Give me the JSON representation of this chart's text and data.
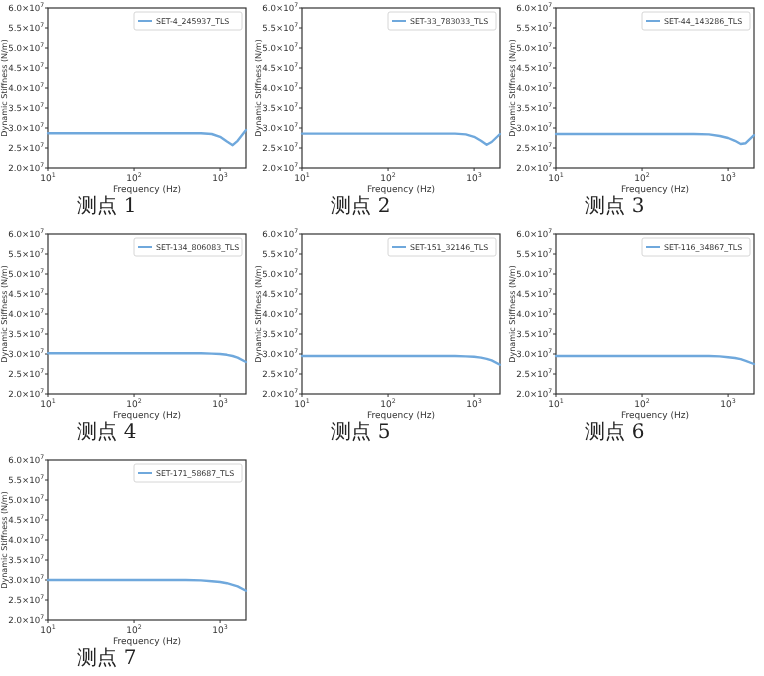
{
  "chart_data": [
    {
      "type": "line",
      "title": "测点 1",
      "xlabel": "Frequency (Hz)",
      "ylabel": "Dynamic Stiffness (N/m)",
      "log": "x",
      "legend": "top right",
      "xlim": [
        10,
        2000
      ],
      "ylim": [
        20000000,
        60000000
      ],
      "xticks": [
        {
          "value": 10,
          "label": "10$^{1}$"
        },
        {
          "value": 100,
          "label": "10$^{2}$"
        },
        {
          "value": 1000,
          "label": "10$^{3}$"
        }
      ],
      "yticks": [
        {
          "value": 20000000,
          "label": "2.0×10$^{7}$"
        },
        {
          "value": 25000000,
          "label": "2.5×10$^{7}$"
        },
        {
          "value": 30000000,
          "label": "3.0×10$^{7}$"
        },
        {
          "value": 35000000,
          "label": "3.5×10$^{7}$"
        },
        {
          "value": 40000000,
          "label": "4.0×10$^{7}$"
        },
        {
          "value": 45000000,
          "label": "4.5×10$^{7}$"
        },
        {
          "value": 50000000,
          "label": "5.0×10$^{7}$"
        },
        {
          "value": 55000000,
          "label": "5.5×10$^{7}$"
        },
        {
          "value": 60000000,
          "label": "6.0×10$^{7}$"
        }
      ],
      "x": [
        10,
        20,
        50,
        100,
        200,
        400,
        600,
        800,
        1000,
        1200,
        1400,
        1600,
        2000
      ],
      "series": [
        {
          "name": "SET-4_245937_TLS",
          "color": "#6fa8dc",
          "values": [
            28700000,
            28700000,
            28700000,
            28700000,
            28700000,
            28700000,
            28700000,
            28500000,
            27800000,
            26600000,
            25700000,
            26800000,
            29500000
          ]
        }
      ]
    },
    {
      "type": "line",
      "title": "测点 2",
      "xlabel": "Frequency (Hz)",
      "ylabel": "Dynamic Stiffness (N/m)",
      "log": "x",
      "legend": "top right",
      "xlim": [
        10,
        2000
      ],
      "ylim": [
        20000000,
        60000000
      ],
      "xticks": [
        {
          "value": 10,
          "label": "10$^{1}$"
        },
        {
          "value": 100,
          "label": "10$^{2}$"
        },
        {
          "value": 1000,
          "label": "10$^{3}$"
        }
      ],
      "yticks": [
        {
          "value": 20000000,
          "label": "2.0×10$^{7}$"
        },
        {
          "value": 25000000,
          "label": "2.5×10$^{7}$"
        },
        {
          "value": 30000000,
          "label": "3.0×10$^{7}$"
        },
        {
          "value": 35000000,
          "label": "3.5×10$^{7}$"
        },
        {
          "value": 40000000,
          "label": "4.0×10$^{7}$"
        },
        {
          "value": 45000000,
          "label": "4.5×10$^{7}$"
        },
        {
          "value": 50000000,
          "label": "5.0×10$^{7}$"
        },
        {
          "value": 55000000,
          "label": "5.5×10$^{7}$"
        },
        {
          "value": 60000000,
          "label": "6.0×10$^{7}$"
        }
      ],
      "x": [
        10,
        20,
        50,
        100,
        200,
        400,
        600,
        800,
        1000,
        1200,
        1400,
        1600,
        2000
      ],
      "series": [
        {
          "name": "SET-33_783033_TLS",
          "color": "#6fa8dc",
          "values": [
            28600000,
            28600000,
            28600000,
            28600000,
            28600000,
            28600000,
            28600000,
            28400000,
            27800000,
            26800000,
            25800000,
            26500000,
            28500000
          ]
        }
      ]
    },
    {
      "type": "line",
      "title": "测点 3",
      "xlabel": "Frequency (Hz)",
      "ylabel": "Dynamic Stiffness (N/m)",
      "log": "x",
      "legend": "top right",
      "xlim": [
        10,
        2000
      ],
      "ylim": [
        20000000,
        60000000
      ],
      "xticks": [
        {
          "value": 10,
          "label": "10$^{1}$"
        },
        {
          "value": 100,
          "label": "10$^{2}$"
        },
        {
          "value": 1000,
          "label": "10$^{3}$"
        }
      ],
      "yticks": [
        {
          "value": 20000000,
          "label": "2.0×10$^{7}$"
        },
        {
          "value": 25000000,
          "label": "2.5×10$^{7}$"
        },
        {
          "value": 30000000,
          "label": "3.0×10$^{7}$"
        },
        {
          "value": 35000000,
          "label": "3.5×10$^{7}$"
        },
        {
          "value": 40000000,
          "label": "4.0×10$^{7}$"
        },
        {
          "value": 45000000,
          "label": "4.5×10$^{7}$"
        },
        {
          "value": 50000000,
          "label": "5.0×10$^{7}$"
        },
        {
          "value": 55000000,
          "label": "5.5×10$^{7}$"
        },
        {
          "value": 60000000,
          "label": "6.0×10$^{7}$"
        }
      ],
      "x": [
        10,
        20,
        50,
        100,
        200,
        400,
        600,
        800,
        1000,
        1200,
        1400,
        1600,
        2000
      ],
      "series": [
        {
          "name": "SET-44_143286_TLS",
          "color": "#6fa8dc",
          "values": [
            28500000,
            28500000,
            28500000,
            28500000,
            28500000,
            28500000,
            28400000,
            28000000,
            27500000,
            26800000,
            26000000,
            26200000,
            28200000
          ]
        }
      ]
    },
    {
      "type": "line",
      "title": "测点 4",
      "xlabel": "Frequency (Hz)",
      "ylabel": "Dynamic Stiffness (N/m)",
      "log": "x",
      "legend": "top right",
      "xlim": [
        10,
        2000
      ],
      "ylim": [
        20000000,
        60000000
      ],
      "xticks": [
        {
          "value": 10,
          "label": "10$^{1}$"
        },
        {
          "value": 100,
          "label": "10$^{2}$"
        },
        {
          "value": 1000,
          "label": "10$^{3}$"
        }
      ],
      "yticks": [
        {
          "value": 20000000,
          "label": "2.0×10$^{7}$"
        },
        {
          "value": 25000000,
          "label": "2.5×10$^{7}$"
        },
        {
          "value": 30000000,
          "label": "3.0×10$^{7}$"
        },
        {
          "value": 35000000,
          "label": "3.5×10$^{7}$"
        },
        {
          "value": 40000000,
          "label": "4.0×10$^{7}$"
        },
        {
          "value": 45000000,
          "label": "4.5×10$^{7}$"
        },
        {
          "value": 50000000,
          "label": "5.0×10$^{7}$"
        },
        {
          "value": 55000000,
          "label": "5.5×10$^{7}$"
        },
        {
          "value": 60000000,
          "label": "6.0×10$^{7}$"
        }
      ],
      "x": [
        10,
        20,
        50,
        100,
        200,
        400,
        600,
        800,
        1000,
        1200,
        1400,
        1600,
        2000
      ],
      "series": [
        {
          "name": "SET-134_806083_TLS",
          "color": "#6fa8dc",
          "values": [
            30200000,
            30200000,
            30200000,
            30200000,
            30200000,
            30200000,
            30200000,
            30100000,
            30000000,
            29800000,
            29500000,
            29100000,
            28000000
          ]
        }
      ]
    },
    {
      "type": "line",
      "title": "测点 5",
      "xlabel": "Frequency (Hz)",
      "ylabel": "Dynamic Stiffness (N/m)",
      "log": "x",
      "legend": "top right",
      "xlim": [
        10,
        2000
      ],
      "ylim": [
        20000000,
        60000000
      ],
      "xticks": [
        {
          "value": 10,
          "label": "10$^{1}$"
        },
        {
          "value": 100,
          "label": "10$^{2}$"
        },
        {
          "value": 1000,
          "label": "10$^{3}$"
        }
      ],
      "yticks": [
        {
          "value": 20000000,
          "label": "2.0×10$^{7}$"
        },
        {
          "value": 25000000,
          "label": "2.5×10$^{7}$"
        },
        {
          "value": 30000000,
          "label": "3.0×10$^{7}$"
        },
        {
          "value": 35000000,
          "label": "3.5×10$^{7}$"
        },
        {
          "value": 40000000,
          "label": "4.0×10$^{7}$"
        },
        {
          "value": 45000000,
          "label": "4.5×10$^{7}$"
        },
        {
          "value": 50000000,
          "label": "5.0×10$^{7}$"
        },
        {
          "value": 55000000,
          "label": "5.5×10$^{7}$"
        },
        {
          "value": 60000000,
          "label": "6.0×10$^{7}$"
        }
      ],
      "x": [
        10,
        20,
        50,
        100,
        200,
        400,
        600,
        800,
        1000,
        1200,
        1400,
        1600,
        2000
      ],
      "series": [
        {
          "name": "SET-151_32146_TLS",
          "color": "#6fa8dc",
          "values": [
            29500000,
            29500000,
            29500000,
            29500000,
            29500000,
            29500000,
            29500000,
            29400000,
            29300000,
            29100000,
            28800000,
            28400000,
            27300000
          ]
        }
      ]
    },
    {
      "type": "line",
      "title": "测点 6",
      "xlabel": "Frequency (Hz)",
      "ylabel": "Dynamic Stiffness (N/m)",
      "log": "x",
      "legend": "top right",
      "xlim": [
        10,
        2000
      ],
      "ylim": [
        20000000,
        60000000
      ],
      "xticks": [
        {
          "value": 10,
          "label": "10$^{1}$"
        },
        {
          "value": 100,
          "label": "10$^{2}$"
        },
        {
          "value": 1000,
          "label": "10$^{3}$"
        }
      ],
      "yticks": [
        {
          "value": 20000000,
          "label": "2.0×10$^{7}$"
        },
        {
          "value": 25000000,
          "label": "2.5×10$^{7}$"
        },
        {
          "value": 30000000,
          "label": "3.0×10$^{7}$"
        },
        {
          "value": 35000000,
          "label": "3.5×10$^{7}$"
        },
        {
          "value": 40000000,
          "label": "4.0×10$^{7}$"
        },
        {
          "value": 45000000,
          "label": "4.5×10$^{7}$"
        },
        {
          "value": 50000000,
          "label": "5.0×10$^{7}$"
        },
        {
          "value": 55000000,
          "label": "5.5×10$^{7}$"
        },
        {
          "value": 60000000,
          "label": "6.0×10$^{7}$"
        }
      ],
      "x": [
        10,
        20,
        50,
        100,
        200,
        400,
        600,
        800,
        1000,
        1200,
        1400,
        1600,
        2000
      ],
      "series": [
        {
          "name": "SET-116_34867_TLS",
          "color": "#6fa8dc",
          "values": [
            29500000,
            29500000,
            29500000,
            29500000,
            29500000,
            29500000,
            29500000,
            29400000,
            29200000,
            29000000,
            28700000,
            28300000,
            27500000
          ]
        }
      ]
    },
    {
      "type": "line",
      "title": "测点 7",
      "xlabel": "Frequency (Hz)",
      "ylabel": "Dynamic Stiffness (N/m)",
      "log": "x",
      "legend": "top right",
      "xlim": [
        10,
        2000
      ],
      "ylim": [
        20000000,
        60000000
      ],
      "xticks": [
        {
          "value": 10,
          "label": "10$^{1}$"
        },
        {
          "value": 100,
          "label": "10$^{2}$"
        },
        {
          "value": 1000,
          "label": "10$^{3}$"
        }
      ],
      "yticks": [
        {
          "value": 20000000,
          "label": "2.0×10$^{7}$"
        },
        {
          "value": 25000000,
          "label": "2.5×10$^{7}$"
        },
        {
          "value": 30000000,
          "label": "3.0×10$^{7}$"
        },
        {
          "value": 35000000,
          "label": "3.5×10$^{7}$"
        },
        {
          "value": 40000000,
          "label": "4.0×10$^{7}$"
        },
        {
          "value": 45000000,
          "label": "4.5×10$^{7}$"
        },
        {
          "value": 50000000,
          "label": "5.0×10$^{7}$"
        },
        {
          "value": 55000000,
          "label": "5.5×10$^{7}$"
        },
        {
          "value": 60000000,
          "label": "6.0×10$^{7}$"
        }
      ],
      "x": [
        10,
        20,
        50,
        100,
        200,
        400,
        600,
        800,
        1000,
        1200,
        1400,
        1600,
        2000
      ],
      "series": [
        {
          "name": "SET-171_58687_TLS",
          "color": "#6fa8dc",
          "values": [
            30000000,
            30000000,
            30000000,
            30000000,
            30000000,
            30000000,
            29900000,
            29700000,
            29500000,
            29200000,
            28800000,
            28400000,
            27300000
          ]
        }
      ]
    }
  ]
}
